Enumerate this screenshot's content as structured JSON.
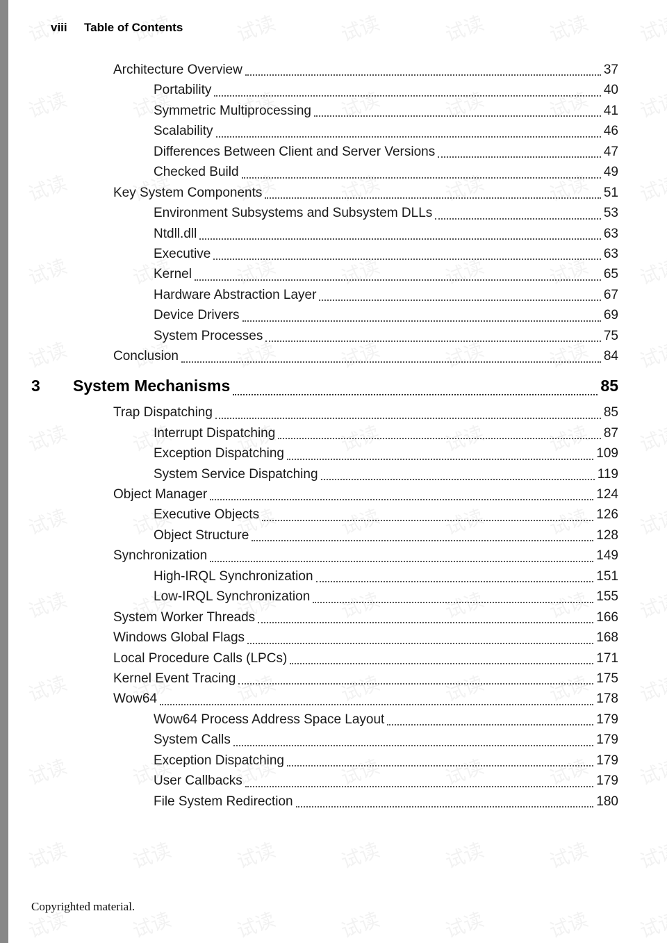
{
  "header": {
    "page_label": "viii",
    "title": "Table of Contents"
  },
  "watermark_text": "试读",
  "chapter": {
    "number": "3",
    "title": "System Mechanisms",
    "page": "85"
  },
  "entries_before": [
    {
      "indent": 0,
      "title": "Architecture Overview",
      "page": "37"
    },
    {
      "indent": 1,
      "title": "Portability",
      "page": "40"
    },
    {
      "indent": 1,
      "title": "Symmetric Multiprocessing",
      "page": "41"
    },
    {
      "indent": 1,
      "title": "Scalability",
      "page": "46"
    },
    {
      "indent": 1,
      "title": "Differences Between Client and Server Versions",
      "page": "47"
    },
    {
      "indent": 1,
      "title": "Checked Build",
      "page": "49"
    },
    {
      "indent": 0,
      "title": "Key System Components",
      "page": "51"
    },
    {
      "indent": 1,
      "title": "Environment Subsystems and Subsystem DLLs",
      "page": "53"
    },
    {
      "indent": 1,
      "title": "Ntdll.dll",
      "page": "63"
    },
    {
      "indent": 1,
      "title": "Executive",
      "page": "63"
    },
    {
      "indent": 1,
      "title": "Kernel",
      "page": "65"
    },
    {
      "indent": 1,
      "title": "Hardware Abstraction Layer",
      "page": "67"
    },
    {
      "indent": 1,
      "title": "Device Drivers",
      "page": "69"
    },
    {
      "indent": 1,
      "title": "System Processes",
      "page": "75"
    },
    {
      "indent": 0,
      "title": "Conclusion",
      "page": "84"
    }
  ],
  "entries_after": [
    {
      "indent": 0,
      "title": "Trap Dispatching",
      "page": "85"
    },
    {
      "indent": 1,
      "title": "Interrupt Dispatching",
      "page": "87"
    },
    {
      "indent": 1,
      "title": "Exception Dispatching",
      "page": "109"
    },
    {
      "indent": 1,
      "title": "System Service Dispatching",
      "page": "119"
    },
    {
      "indent": 0,
      "title": "Object Manager",
      "page": "124"
    },
    {
      "indent": 1,
      "title": "Executive Objects",
      "page": "126"
    },
    {
      "indent": 1,
      "title": "Object Structure",
      "page": "128"
    },
    {
      "indent": 0,
      "title": "Synchronization",
      "page": "149"
    },
    {
      "indent": 1,
      "title": "High-IRQL Synchronization",
      "page": "151"
    },
    {
      "indent": 1,
      "title": "Low-IRQL Synchronization",
      "page": "155"
    },
    {
      "indent": 0,
      "title": "System Worker Threads",
      "page": "166"
    },
    {
      "indent": 0,
      "title": "Windows Global Flags",
      "page": "168"
    },
    {
      "indent": 0,
      "title": "Local Procedure Calls (LPCs)",
      "page": "171"
    },
    {
      "indent": 0,
      "title": "Kernel Event Tracing",
      "page": "175"
    },
    {
      "indent": 0,
      "title": "Wow64",
      "page": "178"
    },
    {
      "indent": 1,
      "title": "Wow64 Process Address Space Layout",
      "page": "179"
    },
    {
      "indent": 1,
      "title": "System Calls",
      "page": "179"
    },
    {
      "indent": 1,
      "title": "Exception Dispatching",
      "page": "179"
    },
    {
      "indent": 1,
      "title": "User Callbacks",
      "page": "179"
    },
    {
      "indent": 1,
      "title": "File System Redirection",
      "page": "180"
    }
  ],
  "footer": {
    "copyright": "Copyrighted material."
  },
  "colors": {
    "background": "#ffffff",
    "text": "#1a1a1a",
    "left_bar": "#888888",
    "watermark": "rgba(0,0,0,0.05)"
  }
}
